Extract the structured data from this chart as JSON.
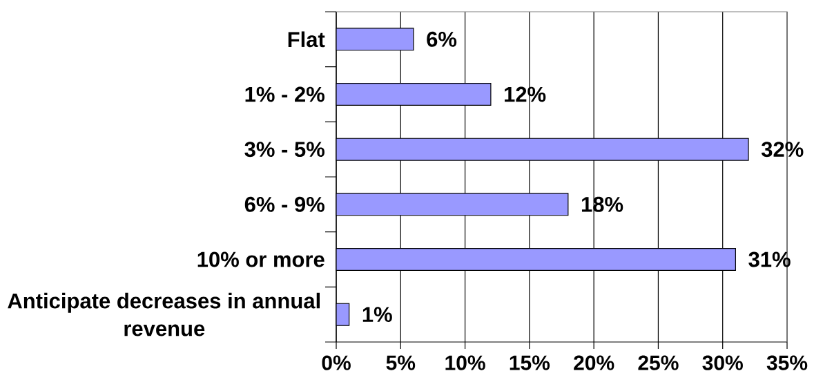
{
  "chart_data": {
    "type": "bar",
    "orientation": "horizontal",
    "categories": [
      "Flat",
      "1% - 2%",
      "3% - 5%",
      "6% - 9%",
      "10% or more",
      "Anticipate decreases in annual revenue"
    ],
    "values": [
      6,
      12,
      32,
      18,
      31,
      1
    ],
    "value_labels": [
      "6%",
      "12%",
      "32%",
      "18%",
      "31%",
      "1%"
    ],
    "color": "#9999ff",
    "xlim": [
      0,
      35
    ],
    "xticks": [
      {
        "value": 0,
        "label": "0%"
      },
      {
        "value": 5,
        "label": "5%"
      },
      {
        "value": 10,
        "label": "10%"
      },
      {
        "value": 15,
        "label": "15%"
      },
      {
        "value": 20,
        "label": "20%"
      },
      {
        "value": 25,
        "label": "25%"
      },
      {
        "value": 30,
        "label": "30%"
      },
      {
        "value": 35,
        "label": "35%"
      }
    ],
    "grid": "x"
  }
}
